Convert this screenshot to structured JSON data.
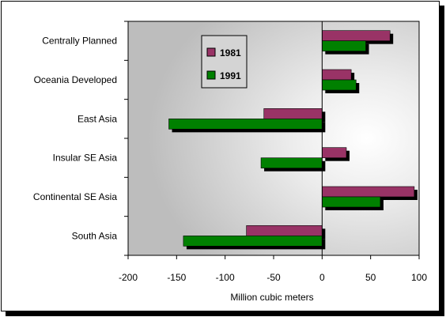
{
  "chart_data": {
    "type": "bar",
    "orientation": "horizontal",
    "categories": [
      "Centrally Planned",
      "Oceania Developed",
      "East Asia",
      "Insular SE Asia",
      "Continental SE Asia",
      "South Asia"
    ],
    "series": [
      {
        "name": "1981",
        "values": [
          70,
          30,
          -60,
          25,
          95,
          -78
        ],
        "color": "#993366"
      },
      {
        "name": "1991",
        "values": [
          45,
          35,
          -158,
          -63,
          60,
          -143
        ],
        "color": "#008000"
      }
    ],
    "xlabel": "Million cubic meters",
    "ylabel": "",
    "title": "",
    "xlim": [
      -200,
      100
    ],
    "xticks": [
      "-200",
      "-150",
      "-100",
      "-50",
      "0",
      "50",
      "100"
    ],
    "legend_position": "top-center",
    "grid": false
  }
}
